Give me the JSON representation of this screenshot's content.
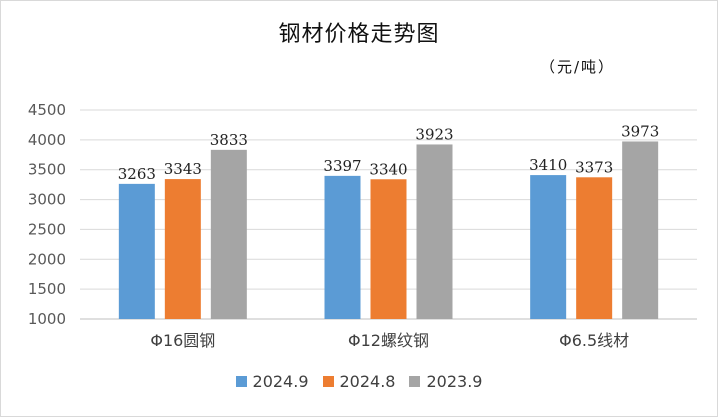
{
  "chart_data": {
    "type": "bar",
    "title": "钢材价格走势图",
    "unit": "（元/吨）",
    "categories": [
      "Φ16圆钢",
      "Φ12螺纹钢",
      "Φ6.5线材"
    ],
    "series": [
      {
        "name": "2024.9",
        "color": "#5b9bd5",
        "values": [
          3263,
          3397,
          3410
        ]
      },
      {
        "name": "2024.8",
        "color": "#ed7d31",
        "values": [
          3343,
          3340,
          3373
        ]
      },
      {
        "name": "2023.9",
        "color": "#a5a5a5",
        "values": [
          3833,
          3923,
          3973
        ]
      }
    ],
    "ylim": [
      1000,
      4500
    ],
    "yticks": [
      1000,
      1500,
      2000,
      2500,
      3000,
      3500,
      4000,
      4500
    ],
    "grid": true,
    "legend": "bottom"
  }
}
